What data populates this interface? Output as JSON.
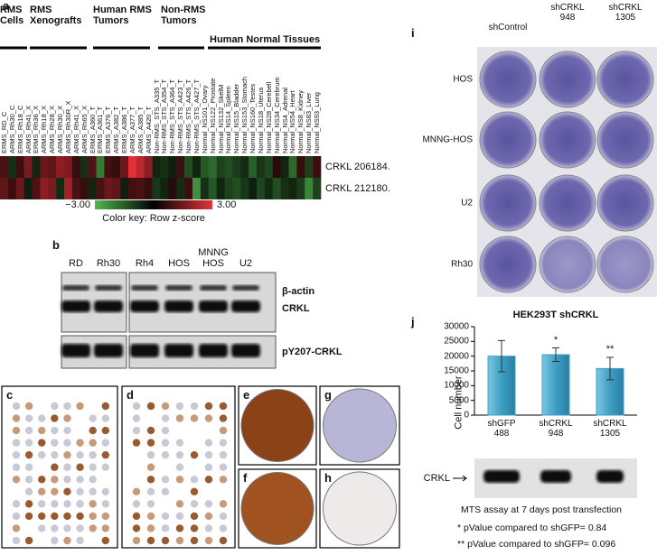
{
  "panel_a": {
    "label": "a",
    "groups": [
      "RMS\nCells",
      "RMS\nXenografts",
      "Human RMS\nTumors",
      "Non-RMS\nTumors",
      "Human Normal Tissues"
    ],
    "columns": [
      "ERMS_RD_C",
      "ARMS_Rh30_C",
      "ERMS_Rh18_C",
      "ARMS_Rh41_X",
      "ERMS_Rh36_X",
      "ARMS_Rh18_X",
      "ARMS_Rh28_X",
      "ARMS_Rh30_X",
      "ARMS_Rh30R_X",
      "ARMS_Rh41_X",
      "ARMS_Rh65_X",
      "ERMS_A360_T",
      "ERMS_A361_T",
      "ERMS_A376_T",
      "ARMS_A382_T",
      "ERMS_A386_T",
      "ARMS_A377_T",
      "ARMS_A385_T",
      "ARMS_A420_T",
      "Non-RMS_STS_A335_T",
      "Non-RMS_STS_A354_T",
      "Non-RMS_STS_A364_T",
      "Non-RMS_STS_A423_T",
      "Non-RMS_STS_A426_T",
      "Non-RMS_STS_A427_T",
      "Normal_NS101_Ovary",
      "Normal_NS122_Prostate",
      "Normal_NS132_SkelM",
      "Normal_NS14_Spleen",
      "Normal_NS15_Bladder",
      "Normal_NS153_Stomach",
      "Normal_NS160_Testes",
      "Normal_NS18_Uterus",
      "Normal_NS28_Cerebell",
      "Normal_NS34_Cerebrum",
      "Normal_NS4_Adrenal",
      "Normal_NS54_Heart",
      "Normal_NS8_Kidney",
      "Normal_NS83_Liver",
      "Normal_NS93_Lung"
    ],
    "rows": [
      {
        "label": "CRKL 206184.",
        "values": [
          0.5,
          -0.5,
          0.3,
          1.2,
          -0.3,
          1.0,
          0.8,
          1.5,
          1.3,
          0.2,
          -0.5,
          0.6,
          -1.8,
          0.4,
          0.2,
          1.0,
          2.8,
          2.2,
          1.5,
          -0.3,
          -0.5,
          -0.2,
          0.3,
          -1.0,
          -0.3,
          -1.2,
          -1.5,
          -0.8,
          -1.0,
          -0.7,
          -0.4,
          -1.3,
          -0.6,
          -0.9,
          0.0,
          -0.3,
          -1.5,
          0.2,
          -0.8,
          0.3
        ]
      },
      {
        "label": "CRKL 212180.",
        "values": [
          0.8,
          0.3,
          1.0,
          -0.2,
          0.6,
          1.5,
          1.2,
          -0.4,
          1.8,
          0.5,
          0.2,
          -0.3,
          0.5,
          1.0,
          0.8,
          -0.2,
          0.4,
          0.5,
          0.2,
          -0.6,
          -0.3,
          0.0,
          -0.4,
          0.3,
          -2.2,
          -0.5,
          -1.2,
          -0.3,
          -0.8,
          -1.0,
          -0.6,
          -0.2,
          -0.9,
          -0.4,
          -1.0,
          -0.5,
          -0.3,
          -0.7,
          -2.0,
          -0.8
        ]
      }
    ],
    "color_key": {
      "title": "Color key: Row z-score",
      "min": {
        "value": -3,
        "label": "−3.00"
      },
      "max": {
        "value": 3,
        "label": "3.00"
      }
    }
  },
  "panel_b": {
    "label": "b",
    "lanes": [
      "RD",
      "Rh30",
      "Rh4",
      "HOS",
      "MNNG\nHOS",
      "U2"
    ],
    "bands": [
      "β-actin",
      "CRKL",
      "pY207-CRKL"
    ]
  },
  "tma_labels": [
    "c",
    "d",
    "e",
    "f",
    "g",
    "h"
  ],
  "panel_i": {
    "label": "i",
    "columns": [
      "shControl",
      "shCRKL\n948",
      "shCRKL\n1305"
    ],
    "rows": [
      "HOS",
      "MNNG-HOS",
      "U2",
      "Rh30"
    ]
  },
  "panel_j": {
    "label": "j",
    "blot_label": "CRKL",
    "notes": [
      "MTS assay at 7 days post transfection",
      "* pValue compared to shGFP= 0.84",
      "** pValue compared to shGFP= 0.096"
    ]
  },
  "chart_data": {
    "type": "bar",
    "title": "HEK293T shCRKL",
    "y_label": "Cell number",
    "categories": [
      "shGFP\n488",
      "shCRKL\n948",
      "shCRKL\n1305"
    ],
    "values": [
      20000,
      20500,
      15800
    ],
    "errors": [
      5300,
      2300,
      3800
    ],
    "color": "#3d9fc4",
    "ylim": [
      0,
      30000
    ],
    "yticks": [
      0,
      5000,
      10000,
      15000,
      20000,
      25000,
      30000
    ],
    "annotations": [
      {
        "category": "shCRKL\n948",
        "text": "*"
      },
      {
        "category": "shCRKL\n1305",
        "text": "**"
      }
    ]
  }
}
